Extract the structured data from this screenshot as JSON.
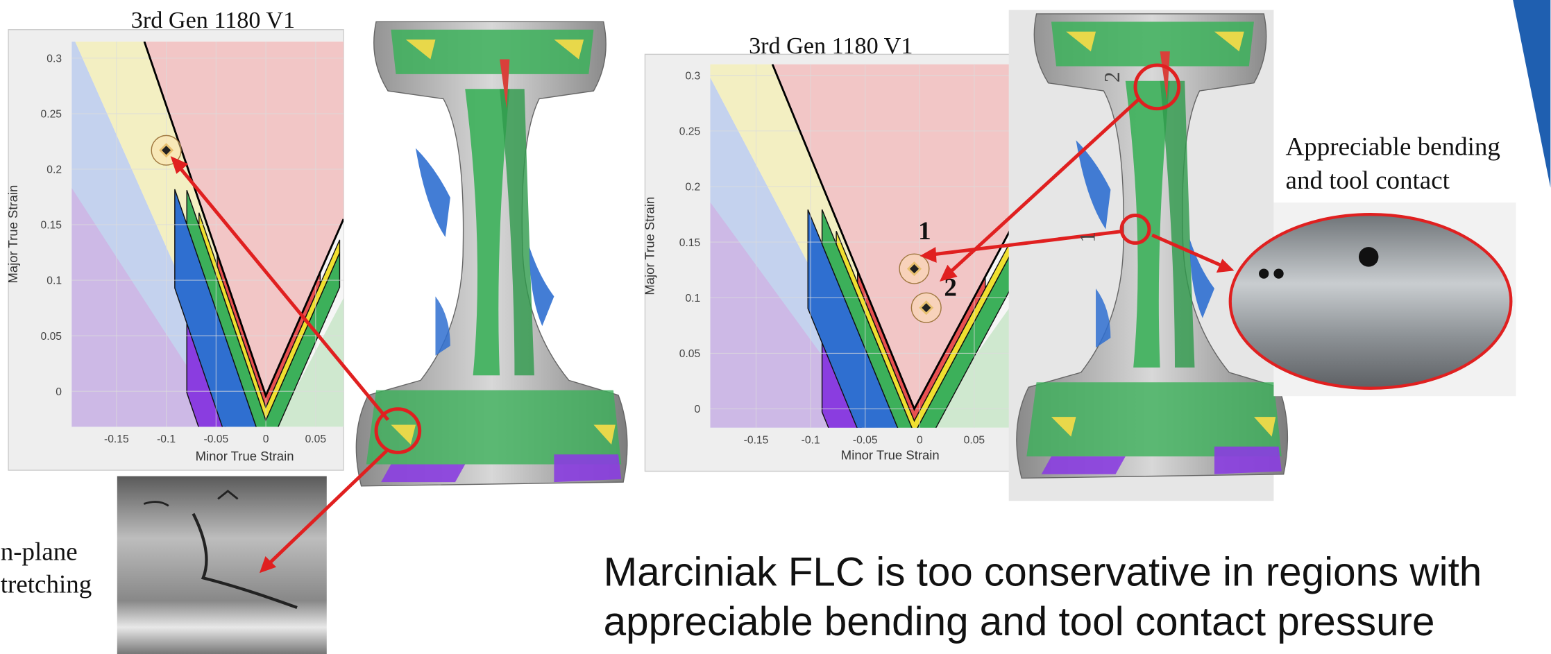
{
  "chart_data": [
    {
      "type": "scatter",
      "title": "3rd Gen 1180 V1",
      "x_label": "Minor True Strain",
      "y_label": "Major True Strain",
      "xlim": [
        -0.195,
        0.078
      ],
      "ylim": [
        -0.032,
        0.315
      ],
      "xticks": [
        -0.15,
        -0.1,
        -0.05,
        0,
        0.05
      ],
      "yticks": [
        0,
        0.05,
        0.1,
        0.15,
        0.2,
        0.25,
        0.3
      ],
      "grid": true,
      "flc": {
        "color": "#000000",
        "x": [
          -0.122,
          0.0,
          0.078
        ],
        "y": [
          0.315,
          -0.004,
          0.155
        ]
      },
      "points": {
        "color": "#222222",
        "x": [
          -0.1
        ],
        "y": [
          0.217
        ]
      }
    },
    {
      "type": "scatter",
      "title": "3rd Gen 1180 V1",
      "x_label": "Minor True Strain",
      "y_label": "Major True Strain",
      "xlim": [
        -0.192,
        0.088
      ],
      "ylim": [
        -0.017,
        0.31
      ],
      "xticks": [
        -0.15,
        -0.1,
        -0.05,
        0,
        0.05
      ],
      "yticks": [
        0,
        0.05,
        0.1,
        0.15,
        0.2,
        0.25,
        0.3
      ],
      "grid": true,
      "flc": {
        "color": "#000000",
        "x": [
          -0.135,
          -0.005,
          0.088
        ],
        "y": [
          0.31,
          0.0,
          0.17
        ]
      },
      "points": {
        "color": "#222222",
        "x": [
          -0.005,
          0.006
        ],
        "y": [
          0.126,
          0.091
        ],
        "labels": [
          "1",
          "2"
        ]
      }
    }
  ],
  "annotations": {
    "right_callout": [
      "Appreciable bending",
      "and tool contact"
    ],
    "left_callout": [
      "n-plane",
      "tretching"
    ],
    "part_labels": [
      "2",
      "1"
    ]
  },
  "conclusion": [
    "Marciniak FLC is too conservative in regions with",
    "appreciable bending and tool contact pressure"
  ]
}
